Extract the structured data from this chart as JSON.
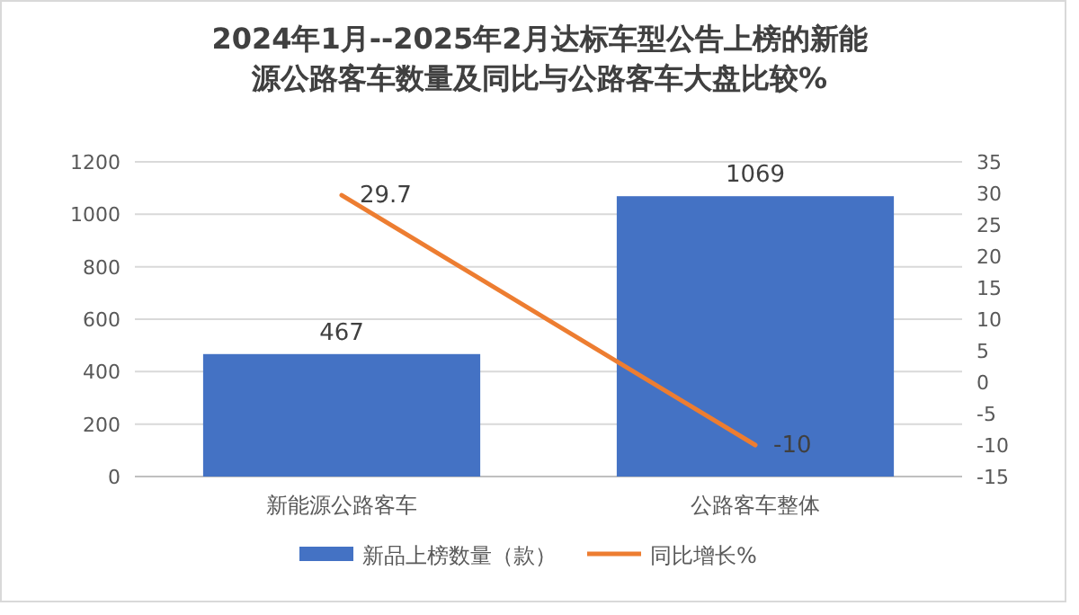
{
  "chart_data": {
    "type": "bar",
    "title": "2024年1月--2025年2月达标车型公告上榜的新能源公路客车数量及同比与公路客车大盘比较%",
    "categories": [
      "新能源公路客车",
      "公路客车整体"
    ],
    "series": [
      {
        "name": "新品上榜数量（款）",
        "color": "#4472c4",
        "values": [
          467,
          1069
        ]
      },
      {
        "name": "同比增长%",
        "type": "line",
        "color": "#ed7d31",
        "axis": "y2",
        "values": [
          29.7,
          -10
        ]
      }
    ],
    "ylim": [
      0,
      1200
    ],
    "yticks": [
      0,
      200,
      400,
      600,
      800,
      1000,
      1200
    ],
    "y2lim": [
      -15,
      35
    ],
    "y2ticks": [
      -15,
      -10,
      -5,
      0,
      5,
      10,
      15,
      20,
      25,
      30,
      35
    ],
    "grid": "y",
    "legend": "bottom",
    "data_labels": true,
    "marker": "none",
    "line_style": "solid"
  }
}
